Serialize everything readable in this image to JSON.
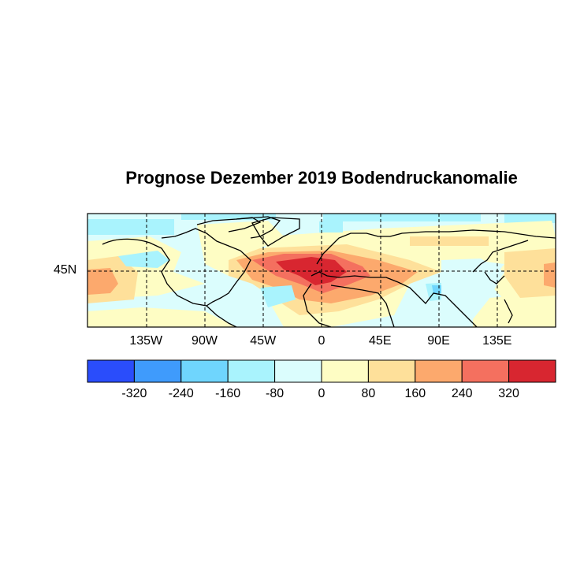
{
  "title": "Prognose Dezember 2019 Bodendruckanomalie",
  "map": {
    "lon_labels": [
      {
        "text": "135W",
        "lon": -135
      },
      {
        "text": "90W",
        "lon": -90
      },
      {
        "text": "45W",
        "lon": -45
      },
      {
        "text": "0",
        "lon": 0
      },
      {
        "text": "45E",
        "lon": 45
      },
      {
        "text": "90E",
        "lon": 90
      },
      {
        "text": "135E",
        "lon": 135
      }
    ],
    "lat_labels": [
      {
        "text": "45N",
        "lat": 45
      }
    ],
    "gridlines": {
      "style": "dashed",
      "lons": [
        -135,
        -90,
        -45,
        0,
        45,
        90,
        135
      ],
      "lats": [
        45
      ]
    }
  },
  "colorbar": {
    "levels": [
      "-320",
      "-240",
      "-160",
      "-80",
      "0",
      "80",
      "160",
      "240",
      "320"
    ],
    "colors": [
      "#2a4dfb",
      "#3f9bfc",
      "#6fd5fd",
      "#a9f3fd",
      "#dbfdfd",
      "#fefdc4",
      "#fee09a",
      "#fca96d",
      "#f4705f",
      "#d82630"
    ]
  },
  "chart_data": {
    "type": "heatmap",
    "title": "Prognose Dezember 2019 Bodendruckanomalie",
    "xlabel": "",
    "ylabel": "",
    "x_ticks": [
      "135W",
      "90W",
      "45W",
      "0",
      "45E",
      "90E",
      "135E"
    ],
    "y_ticks": [
      "45N"
    ],
    "xlim": [
      -180,
      180
    ],
    "ylim": [
      2,
      89
    ],
    "colorbar_levels": [
      -320,
      -240,
      -160,
      -80,
      0,
      80,
      160,
      240,
      320
    ],
    "colorbar_colors": [
      "#2a4dfb",
      "#3f9bfc",
      "#6fd5fd",
      "#a9f3fd",
      "#dbfdfd",
      "#fefdc4",
      "#fee09a",
      "#fca96d",
      "#f4705f",
      "#d82630"
    ],
    "features": [
      {
        "region": "North Atlantic / Western Europe (~20W-10E, 45-55N)",
        "value_range": "> 320"
      },
      {
        "region": "Central Europe / Mediterranean",
        "value_range": "160 to 320"
      },
      {
        "region": "Central Asia / Middle East",
        "value_range": "80 to 240"
      },
      {
        "region": "Northeast Pacific (~170W, 35N)",
        "value_range": "160 to 240"
      },
      {
        "region": "Northwest Pacific (~175E, 35-45N)",
        "value_range": "80 to 240"
      },
      {
        "region": "North America interior",
        "value_range": "-80 to 0"
      },
      {
        "region": "Alaska / Gulf of Alaska",
        "value_range": "-160 to -80"
      },
      {
        "region": "Arctic (near 80N)",
        "value_range": "-160 to 0"
      },
      {
        "region": "Bay of Bengal / Southeast Asia (~90E, 25N)",
        "value_range": "-240 to -80"
      },
      {
        "region": "Siberia",
        "value_range": "0 to 160"
      }
    ]
  }
}
